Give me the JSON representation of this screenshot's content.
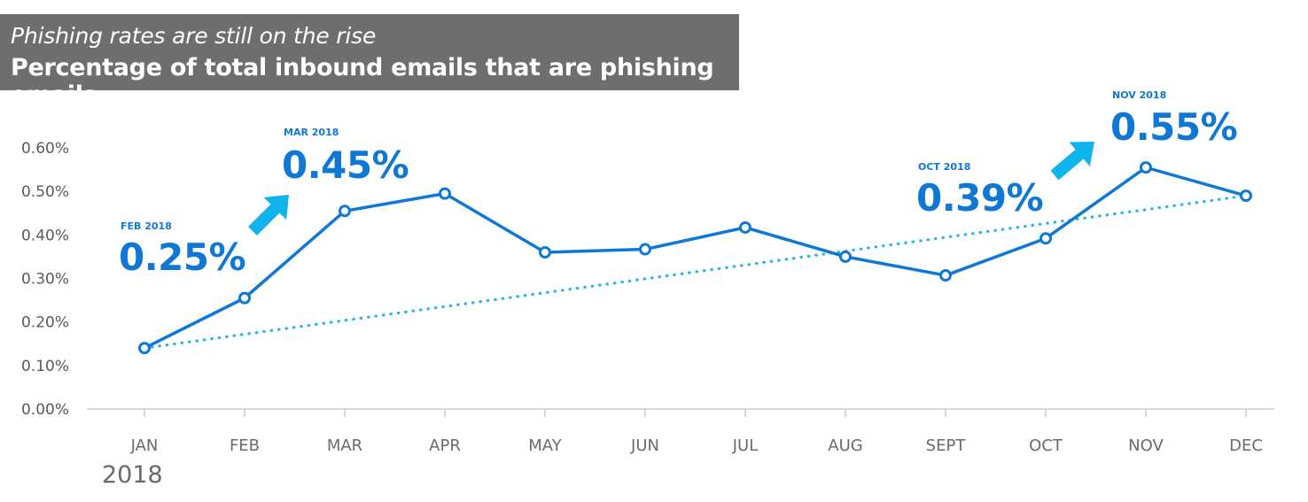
{
  "header": {
    "subtitle": "Phishing rates are still on the rise",
    "title": "Percentage of total inbound emails that are phishing emails"
  },
  "chart_data": {
    "type": "line",
    "title": "Percentage of total inbound emails that are phishing emails",
    "subtitle": "Phishing rates are still on the rise",
    "categories": [
      "JAN",
      "FEB",
      "MAR",
      "APR",
      "MAY",
      "JUN",
      "JUL",
      "AUG",
      "SEPT",
      "OCT",
      "NOV",
      "DEC"
    ],
    "year_label": "2018",
    "y_ticks": [
      "0.00%",
      "0.10%",
      "0.20%",
      "0.30%",
      "0.40%",
      "0.50%",
      "0.60%"
    ],
    "ylim": [
      0,
      0.6
    ],
    "series": [
      {
        "values": [
          0.14,
          0.255,
          0.455,
          0.495,
          0.36,
          0.367,
          0.417,
          0.35,
          0.307,
          0.392,
          0.555,
          0.49
        ],
        "color": "#0f78d4"
      }
    ],
    "trendline": {
      "start": 0.14,
      "end": 0.49,
      "color": "#2bb6e4",
      "style": "dotted"
    },
    "annotations": [
      {
        "label": "FEB 2018",
        "value": "0.25%"
      },
      {
        "label": "MAR 2018",
        "value": "0.45%"
      },
      {
        "label": "OCT 2018",
        "value": "0.39%"
      },
      {
        "label": "NOV 2018",
        "value": "0.55%"
      }
    ],
    "arrow_color": "#10b4ec",
    "grid": false,
    "legend": "none"
  }
}
